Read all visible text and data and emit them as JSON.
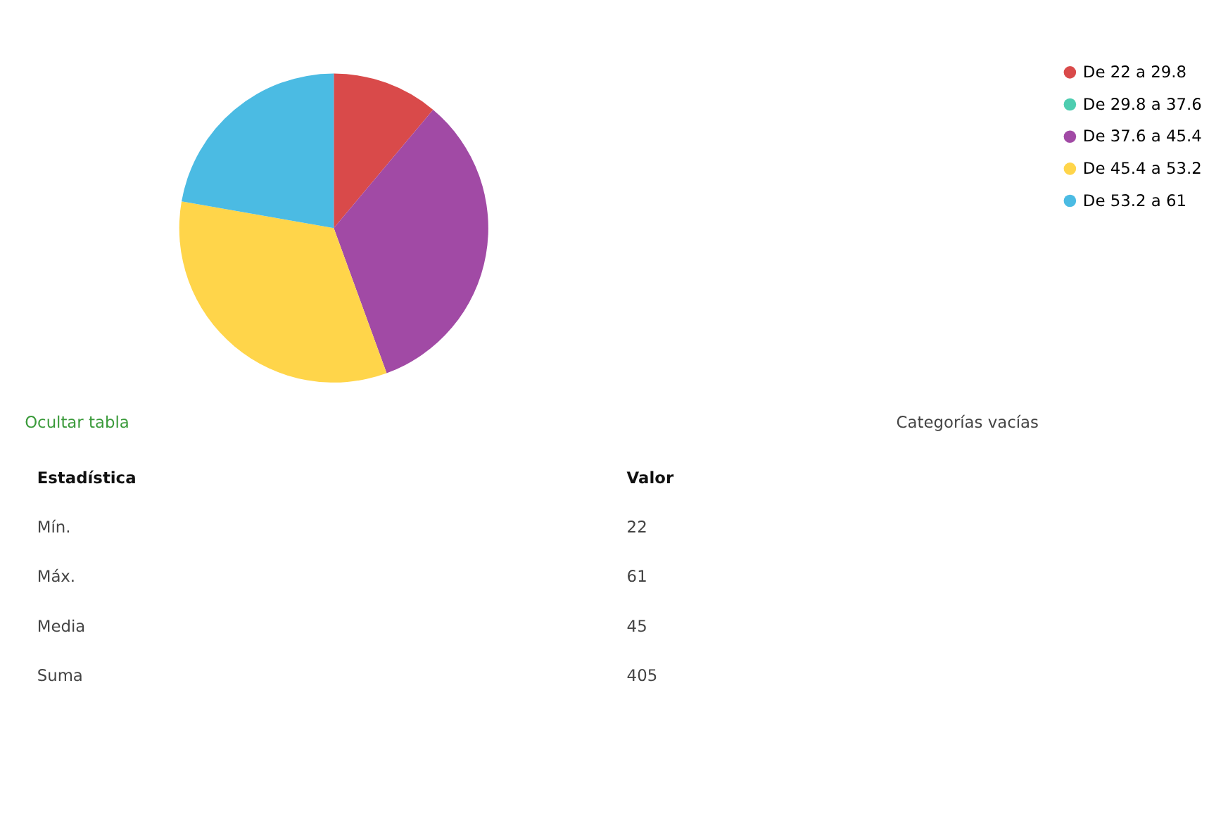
{
  "chart_data": {
    "type": "pie",
    "categories": [
      "De 22 a 29.8",
      "De 29.8 a 37.6",
      "De 37.6 a 45.4",
      "De 45.4 a 53.2",
      "De 53.2 a 61"
    ],
    "values": [
      11.11,
      0,
      33.33,
      33.33,
      22.23
    ],
    "colors": [
      "#d94a4a",
      "#4ecdb0",
      "#a14aa5",
      "#ffd54a",
      "#4bbbe3"
    ],
    "legend": "right",
    "annotations": [
      "Ocultar tabla",
      "Categorías vacías",
      "Estadística",
      "Valor",
      "Mín.",
      "22",
      "Máx.",
      "61",
      "Media",
      "45",
      "Suma",
      "405"
    ]
  }
}
